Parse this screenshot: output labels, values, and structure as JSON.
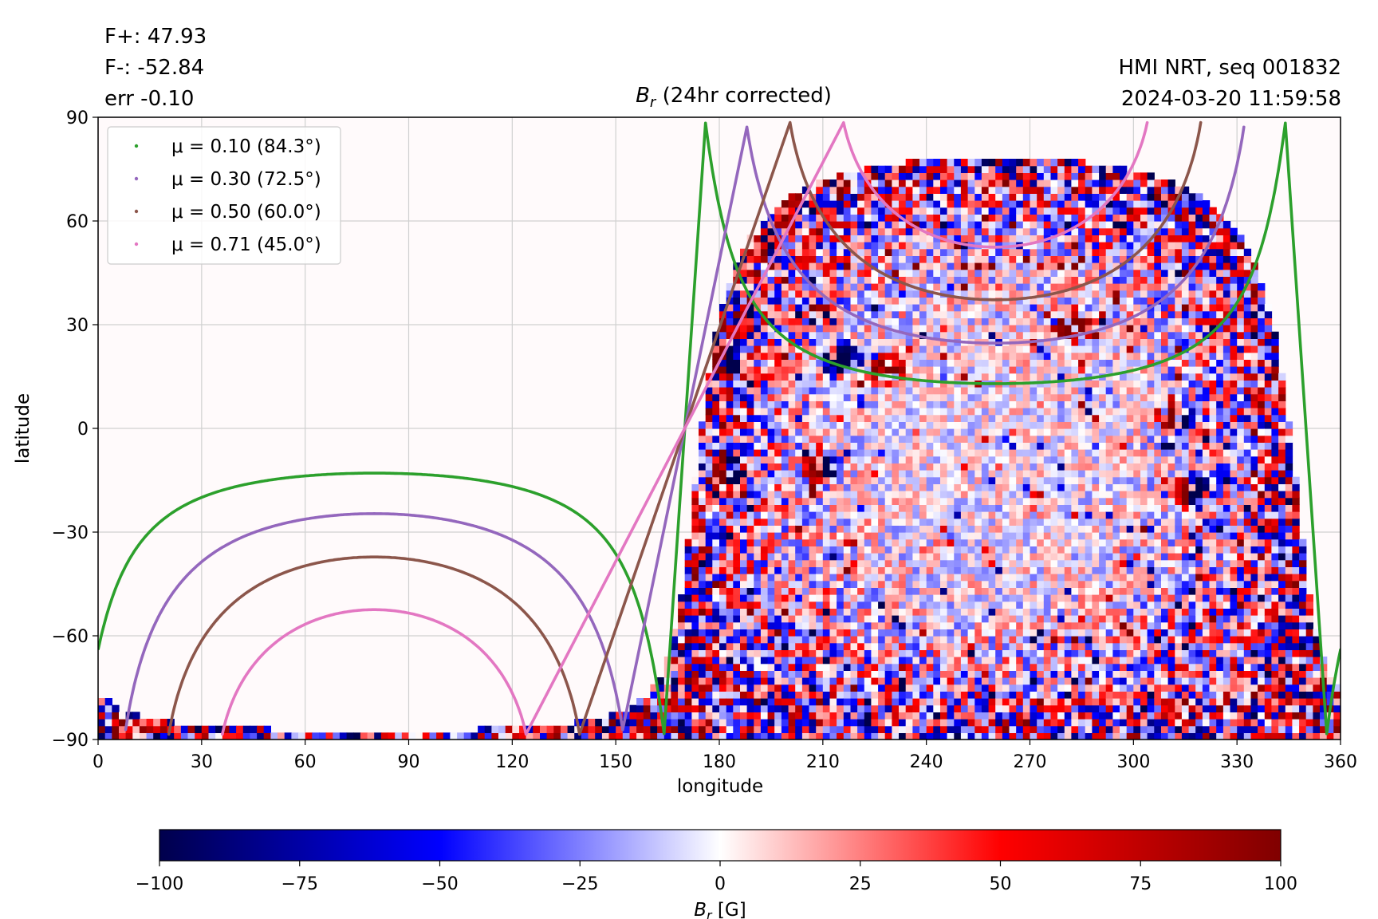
{
  "header": {
    "flux_pos": "F+: 47.93",
    "flux_neg": "F-: -52.84",
    "err": "err -0.10",
    "source": "HMI NRT, seq 001832",
    "datetime": "2024-03-20 11:59:58"
  },
  "chart_data": {
    "type": "heatmap",
    "title": "B_r (24hr corrected)",
    "xlabel": "longitude",
    "ylabel": "latitude",
    "xlim": [
      0,
      360
    ],
    "ylim": [
      -90,
      90
    ],
    "xticks": [
      0,
      30,
      60,
      90,
      120,
      150,
      180,
      210,
      240,
      270,
      300,
      330,
      360
    ],
    "yticks": [
      -90,
      -60,
      -30,
      0,
      30,
      60,
      90
    ],
    "grid": true,
    "legend_position": "top-left",
    "disk_center": {
      "lon": 260,
      "lat": -7.2
    },
    "series": [
      {
        "name": "μ = 0.10 (84.3°)",
        "mu": 0.1,
        "angle_deg": 84.3,
        "color": "#2ca02c"
      },
      {
        "name": "μ = 0.30 (72.5°)",
        "mu": 0.3,
        "angle_deg": 72.5,
        "color": "#9467bd"
      },
      {
        "name": "μ = 0.50 (60.0°)",
        "mu": 0.5,
        "angle_deg": 60.0,
        "color": "#8c564b"
      },
      {
        "name": "μ = 0.71 (45.0°)",
        "mu": 0.71,
        "angle_deg": 45.0,
        "color": "#e377c2"
      }
    ],
    "active_regions": [
      {
        "lon": 215,
        "lat": 20,
        "polarity": "negative"
      },
      {
        "lon": 228,
        "lat": 17,
        "polarity": "positive"
      },
      {
        "lon": 182,
        "lat": 19,
        "polarity": "mixed"
      },
      {
        "lon": 182,
        "lat": -12,
        "polarity": "mixed"
      },
      {
        "lon": 210,
        "lat": -12,
        "polarity": "mixed"
      },
      {
        "lon": 317,
        "lat": -18,
        "polarity": "mixed"
      },
      {
        "lon": 313,
        "lat": 4,
        "polarity": "mixed"
      },
      {
        "lon": 282,
        "lat": 30,
        "polarity": "positive"
      }
    ],
    "colorbar": {
      "label": "B_r [G]",
      "min": -100,
      "max": 100,
      "ticks": [
        -100,
        -75,
        -50,
        -25,
        0,
        25,
        50,
        75,
        100
      ],
      "colormap": "seismic",
      "colors": [
        "#00004c",
        "#0000ff",
        "#ffffff",
        "#ff0000",
        "#800000"
      ]
    }
  }
}
